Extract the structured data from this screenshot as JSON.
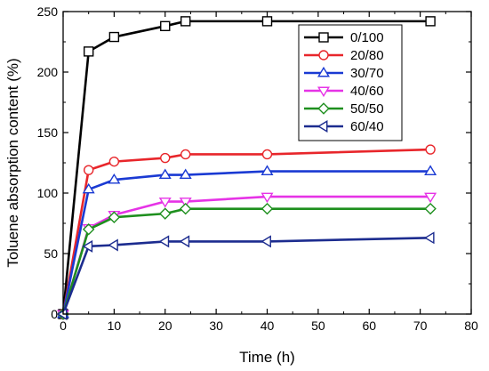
{
  "chart_data": {
    "type": "line",
    "title": "",
    "xlabel": "Time (h)",
    "ylabel": "Toluene absorption content (%)",
    "xlim": [
      0,
      80
    ],
    "ylim": [
      0,
      250
    ],
    "x_ticks": [
      0,
      10,
      20,
      30,
      40,
      50,
      60,
      70,
      80
    ],
    "y_ticks": [
      0,
      50,
      100,
      150,
      200,
      250
    ],
    "grid": false,
    "legend_position": "top-right",
    "x": [
      0,
      5,
      10,
      20,
      24,
      40,
      72
    ],
    "series": [
      {
        "name": "0/100",
        "color": "#000000",
        "marker": "square",
        "values": [
          0,
          217,
          229,
          238,
          242,
          242,
          242
        ]
      },
      {
        "name": "20/80",
        "color": "#e8262b",
        "marker": "circle",
        "values": [
          0,
          119,
          126,
          129,
          132,
          132,
          136
        ]
      },
      {
        "name": "30/70",
        "color": "#1a3ad3",
        "marker": "triangle-up",
        "values": [
          0,
          103,
          111,
          115,
          115,
          118,
          118
        ]
      },
      {
        "name": "40/60",
        "color": "#e633e6",
        "marker": "triangle-down",
        "values": [
          0,
          71,
          82,
          93,
          93,
          97,
          97
        ]
      },
      {
        "name": "50/50",
        "color": "#1e8f1e",
        "marker": "diamond",
        "values": [
          0,
          70,
          80,
          83,
          87,
          87,
          87
        ]
      },
      {
        "name": "60/40",
        "color": "#1c2c8f",
        "marker": "triangle-left",
        "values": [
          0,
          56,
          57,
          60,
          60,
          60,
          63
        ]
      }
    ]
  }
}
